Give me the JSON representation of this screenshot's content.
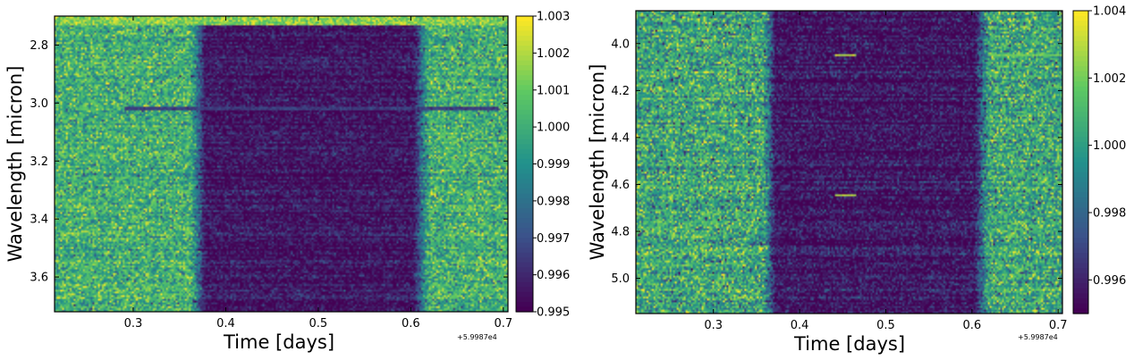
{
  "colormap": [
    "#440154",
    "#3b528b",
    "#21918c",
    "#5ec962",
    "#fde725"
  ],
  "chart_data": [
    {
      "type": "heatmap",
      "title": "",
      "xlabel": "Time [days]",
      "ylabel": "Wavelength [micron]",
      "x_offset_label": "+5.9987e4",
      "xlim": [
        0.215,
        0.705
      ],
      "ylim": [
        2.7,
        3.72
      ],
      "y_inverted": true,
      "xticks": [
        0.3,
        0.4,
        0.5,
        0.6,
        0.7
      ],
      "xtick_labels": [
        "0.3",
        "0.4",
        "0.5",
        "0.6",
        "0.7"
      ],
      "yticks": [
        2.8,
        3.0,
        3.2,
        3.4,
        3.6
      ],
      "ytick_labels": [
        "2.8",
        "3.0",
        "3.2",
        "3.4",
        "3.6"
      ],
      "colorbar": {
        "min": 0.995,
        "max": 1.003,
        "ticks": [
          0.995,
          0.996,
          0.997,
          0.998,
          0.999,
          1.0,
          1.001,
          1.002,
          1.003
        ],
        "tick_labels": [
          "0.995",
          "0.996",
          "0.997",
          "0.998",
          "0.999",
          "1.000",
          "1.001",
          "1.002",
          "1.003"
        ]
      },
      "transit": {
        "ingress_start": 0.362,
        "ingress_end": 0.378,
        "egress_start": 0.603,
        "egress_end": 0.62
      },
      "baseline_value": 1.0001,
      "in_transit_value": 0.9955,
      "noise_std": 0.0012,
      "features": [
        {
          "kind": "dark_line",
          "wavelength": 3.02,
          "x_from": 0.29,
          "x_to": 0.695,
          "value": 0.9965
        },
        {
          "kind": "bright_edge",
          "wavelength_from": 2.7,
          "wavelength_to": 2.73,
          "value": 1.003
        }
      ]
    },
    {
      "type": "heatmap",
      "title": "",
      "xlabel": "Time [days]",
      "ylabel": "Wavelength [micron]",
      "x_offset_label": "+5.9987e4",
      "xlim": [
        0.21,
        0.705
      ],
      "ylim": [
        3.86,
        5.15
      ],
      "y_inverted": true,
      "xticks": [
        0.3,
        0.4,
        0.5,
        0.6,
        0.7
      ],
      "xtick_labels": [
        "0.3",
        "0.4",
        "0.5",
        "0.6",
        "0.7"
      ],
      "yticks": [
        4.0,
        4.2,
        4.4,
        4.6,
        4.8,
        5.0
      ],
      "ytick_labels": [
        "4.0",
        "4.2",
        "4.4",
        "4.6",
        "4.8",
        "5.0"
      ],
      "colorbar": {
        "min": 0.995,
        "max": 1.004,
        "ticks": [
          0.996,
          0.998,
          1.0,
          1.002,
          1.004
        ],
        "tick_labels": [
          "0.996",
          "0.998",
          "1.000",
          "1.002",
          "1.004"
        ]
      },
      "transit": {
        "ingress_start": 0.358,
        "ingress_end": 0.372,
        "egress_start": 0.603,
        "egress_end": 0.62
      },
      "baseline_value": 1.0003,
      "in_transit_value": 0.9955,
      "noise_std": 0.0016,
      "features": [
        {
          "kind": "bright_spot",
          "wavelength": 4.05,
          "x_from": 0.44,
          "x_to": 0.465,
          "value": 1.003
        },
        {
          "kind": "bright_line",
          "wavelength": 4.05,
          "x_from": 0.62,
          "x_to": 0.705,
          "value": 1.002
        },
        {
          "kind": "bright_spot",
          "wavelength": 4.645,
          "x_from": 0.44,
          "x_to": 0.465,
          "value": 1.003
        },
        {
          "kind": "dark_line",
          "wavelength": 4.05,
          "x_from": 0.465,
          "x_to": 0.6,
          "value": 0.9952
        },
        {
          "kind": "dark_line",
          "wavelength": 4.645,
          "x_from": 0.465,
          "x_to": 0.6,
          "value": 0.9952
        }
      ]
    }
  ]
}
